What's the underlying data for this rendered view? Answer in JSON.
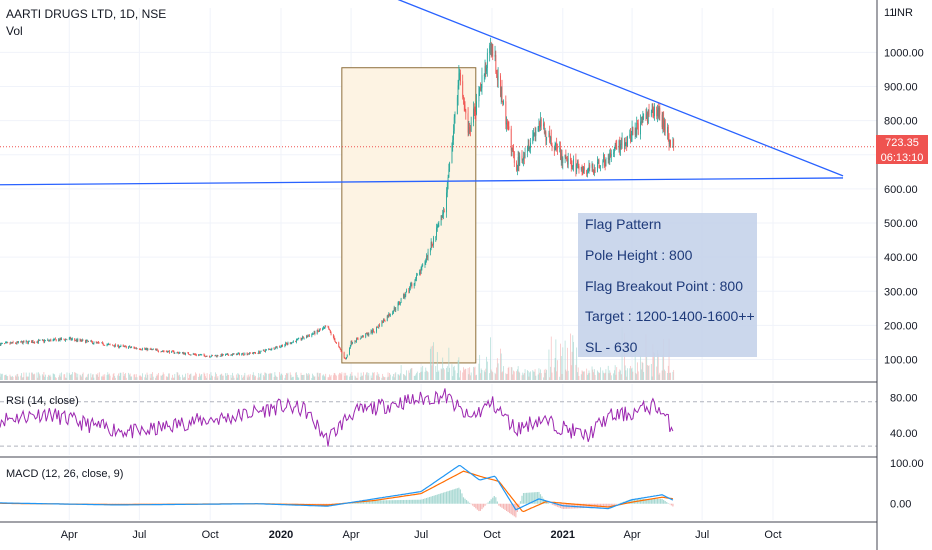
{
  "header": {
    "symbol_title": "AARTI DRUGS LTD, 1D, NSE",
    "vol_label": "Vol",
    "currency": "INR"
  },
  "price_badge": {
    "price": "723.35",
    "countdown": "06:13:10"
  },
  "annotation": {
    "lines": [
      "Flag Pattern",
      "Pole Height : 800",
      "Flag Breakout Point : 800",
      "Target : 1200-1400-1600++",
      "SL - 630"
    ]
  },
  "colors": {
    "up": "#26a69a",
    "down": "#ef5350",
    "trendline": "#2962ff",
    "rsi": "#9c27b0",
    "macd": "#2196f3",
    "signal": "#ff6d00",
    "annotation_bg": "#c5d3ea",
    "annotation_text": "#1e3a7a",
    "highlight_border": "#8d6e3a",
    "highlight_fill": "#fdf3e3"
  },
  "chart_data": [
    {
      "type": "candlestick",
      "title": "AARTI DRUGS LTD, 1D, NSE",
      "ylabel": "INR",
      "y_ticks": [
        100,
        200,
        300,
        400,
        500,
        600,
        700,
        800,
        900,
        1000
      ],
      "y_tick_labels": [
        "100.00",
        "200.00",
        "300.00",
        "400.00",
        "500.00",
        "600.00",
        "700.00",
        "800.00",
        "900.00",
        "1000.00"
      ],
      "top_tick_label": "11",
      "ylim": [
        40,
        1130
      ],
      "x_tick_labels": [
        "Apr",
        "Jul",
        "Oct",
        "2020",
        "Apr",
        "Jul",
        "Oct",
        "2021",
        "Apr",
        "Jul",
        "Oct"
      ],
      "x_tick_dates": [
        "2019-04",
        "2019-07",
        "2019-10",
        "2020-01",
        "2020-04",
        "2020-07",
        "2020-10",
        "2021-01",
        "2021-04",
        "2021-07",
        "2021-10"
      ],
      "x_range": [
        "2019-01",
        "2021-12"
      ],
      "price_path": [
        [
          "2019-01",
          145
        ],
        [
          "2019-03",
          155
        ],
        [
          "2019-04",
          160
        ],
        [
          "2019-06",
          140
        ],
        [
          "2019-08",
          125
        ],
        [
          "2019-10",
          110
        ],
        [
          "2019-12",
          120
        ],
        [
          "2020-01",
          140
        ],
        [
          "2020-02",
          165
        ],
        [
          "2020-03",
          195
        ],
        [
          "2020-03-25",
          100
        ],
        [
          "2020-04",
          150
        ],
        [
          "2020-05",
          185
        ],
        [
          "2020-06",
          260
        ],
        [
          "2020-07",
          360
        ],
        [
          "2020-08",
          540
        ],
        [
          "2020-08-20",
          940
        ],
        [
          "2020-09",
          760
        ],
        [
          "2020-10-01",
          1025
        ],
        [
          "2020-10-20",
          790
        ],
        [
          "2020-11",
          665
        ],
        [
          "2020-12",
          790
        ],
        [
          "2021-01",
          690
        ],
        [
          "2021-02",
          650
        ],
        [
          "2021-03",
          690
        ],
        [
          "2021-04",
          760
        ],
        [
          "2021-05",
          840
        ],
        [
          "2021-05-25",
          723
        ]
      ],
      "last_price": 723.35,
      "highlight_box": {
        "from": "2020-03-20",
        "to": "2020-09-10",
        "low": 90,
        "high": 955
      },
      "trendlines": [
        {
          "from": [
            "2020-06-01",
            1155
          ],
          "to": [
            "2021-12-31",
            638
          ]
        },
        {
          "from": [
            "2019-01-01",
            612
          ],
          "to": [
            "2021-12-31",
            632
          ]
        }
      ],
      "volume": {
        "label": "Vol",
        "spikes": [
          "2020-08",
          "2020-10",
          "2021-01",
          "2021-04",
          "2021-05"
        ]
      }
    },
    {
      "type": "line",
      "title": "RSI (14, close)",
      "ylim": [
        15,
        95
      ],
      "y_tick_labels": [
        "80.00",
        "40.00"
      ],
      "y_ticks": [
        80,
        40
      ],
      "bands": [
        75,
        25
      ],
      "series": [
        {
          "name": "RSI (14, close)",
          "values_path": [
            [
              "2019-01",
              55
            ],
            [
              "2019-03",
              62
            ],
            [
              "2019-05",
              48
            ],
            [
              "2019-07",
              40
            ],
            [
              "2019-09",
              52
            ],
            [
              "2019-11",
              58
            ],
            [
              "2020-01",
              70
            ],
            [
              "2020-02",
              66
            ],
            [
              "2020-03",
              32
            ],
            [
              "2020-04",
              62
            ],
            [
              "2020-06",
              74
            ],
            [
              "2020-08",
              82
            ],
            [
              "2020-09",
              56
            ],
            [
              "2020-10",
              74
            ],
            [
              "2020-11",
              44
            ],
            [
              "2020-12",
              55
            ],
            [
              "2021-01",
              46
            ],
            [
              "2021-02",
              36
            ],
            [
              "2021-03",
              58
            ],
            [
              "2021-04",
              62
            ],
            [
              "2021-05",
              72
            ],
            [
              "2021-05-25",
              44
            ]
          ]
        }
      ]
    },
    {
      "type": "line",
      "title": "MACD (12, 26, close, 9)",
      "ylim": [
        -40,
        110
      ],
      "y_tick_labels": [
        "100.00",
        "0.00"
      ],
      "y_ticks": [
        100,
        0
      ],
      "series": [
        {
          "name": "MACD",
          "values_path": [
            [
              "2019-01",
              2
            ],
            [
              "2019-06",
              -3
            ],
            [
              "2019-12",
              0
            ],
            [
              "2020-03",
              -6
            ],
            [
              "2020-05",
              12
            ],
            [
              "2020-07",
              30
            ],
            [
              "2020-08-20",
              95
            ],
            [
              "2020-09-15",
              58
            ],
            [
              "2020-10-05",
              68
            ],
            [
              "2020-11",
              -15
            ],
            [
              "2020-12",
              12
            ],
            [
              "2021-01",
              -5
            ],
            [
              "2021-03",
              -12
            ],
            [
              "2021-04",
              10
            ],
            [
              "2021-05-10",
              22
            ],
            [
              "2021-05-25",
              8
            ]
          ]
        },
        {
          "name": "Signal",
          "values_path": [
            [
              "2019-01",
              1
            ],
            [
              "2019-06",
              -2
            ],
            [
              "2019-12",
              0
            ],
            [
              "2020-03",
              -3
            ],
            [
              "2020-05",
              8
            ],
            [
              "2020-07",
              25
            ],
            [
              "2020-08-25",
              80
            ],
            [
              "2020-09-20",
              65
            ],
            [
              "2020-10-10",
              55
            ],
            [
              "2020-11-10",
              -20
            ],
            [
              "2020-12-10",
              5
            ],
            [
              "2021-01-10",
              0
            ],
            [
              "2021-03",
              -8
            ],
            [
              "2021-04",
              4
            ],
            [
              "2021-05-10",
              16
            ],
            [
              "2021-05-25",
              12
            ]
          ]
        }
      ]
    }
  ]
}
